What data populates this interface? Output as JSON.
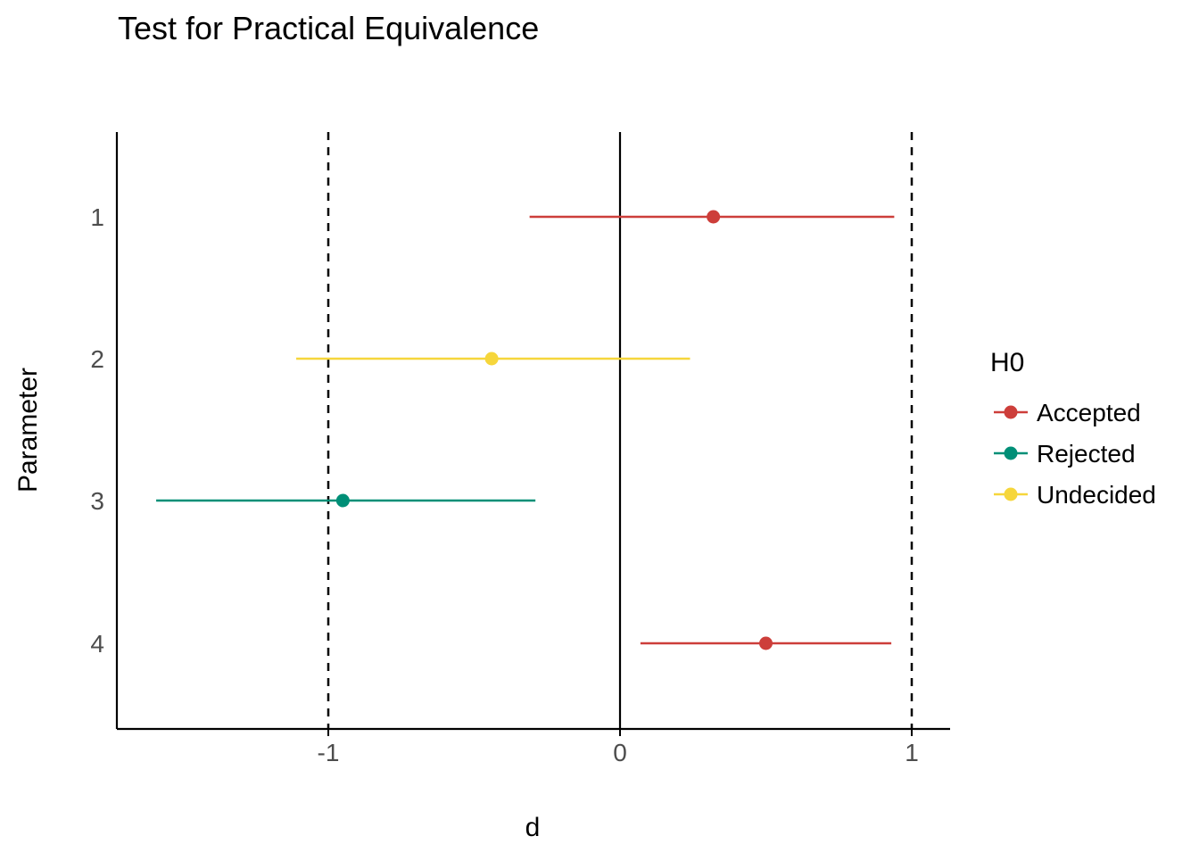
{
  "chart_data": {
    "type": "scatter",
    "title": "Test for Practical Equivalence",
    "xlabel": "d",
    "ylabel": "Parameter",
    "xlim": [
      -1.72,
      1.13
    ],
    "x_ticks": [
      -1,
      0,
      1
    ],
    "x_tick_labels": [
      "-1",
      "0",
      "1"
    ],
    "categories": [
      "1",
      "2",
      "3",
      "4"
    ],
    "reference_lines": {
      "solid": [
        0
      ],
      "dashed": [
        -1,
        1
      ]
    },
    "grid": false,
    "legend": {
      "title": "H0",
      "position": "right",
      "entries": [
        {
          "label": "Accepted",
          "color": "#CD3E3A"
        },
        {
          "label": "Rejected",
          "color": "#008F77"
        },
        {
          "label": "Undecided",
          "color": "#F6D63B"
        }
      ]
    },
    "points": [
      {
        "parameter": "1",
        "estimate": 0.32,
        "ci_low": -0.31,
        "ci_high": 0.94,
        "h0": "Accepted"
      },
      {
        "parameter": "2",
        "estimate": -0.44,
        "ci_low": -1.11,
        "ci_high": 0.24,
        "h0": "Undecided"
      },
      {
        "parameter": "3",
        "estimate": -0.95,
        "ci_low": -1.59,
        "ci_high": -0.29,
        "h0": "Rejected"
      },
      {
        "parameter": "4",
        "estimate": 0.5,
        "ci_low": 0.07,
        "ci_high": 0.93,
        "h0": "Accepted"
      }
    ]
  }
}
